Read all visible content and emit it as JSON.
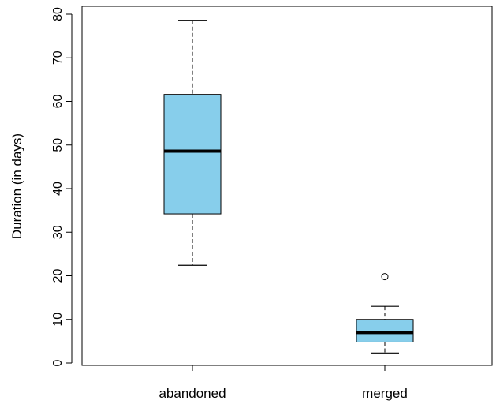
{
  "chart_data": {
    "type": "boxplot",
    "ylabel": "Duration (in days)",
    "xlabel": "",
    "title": "",
    "ylim": [
      0,
      80
    ],
    "yticks": [
      0,
      10,
      20,
      30,
      40,
      50,
      60,
      70,
      80
    ],
    "grid": false,
    "box_fill": "#87CEEB",
    "categories": [
      "abandoned",
      "merged"
    ],
    "boxes": [
      {
        "category": "abandoned",
        "whisker_low": 22.4,
        "q1": 34.2,
        "median": 48.6,
        "q3": 61.6,
        "whisker_high": 78.6,
        "outliers": []
      },
      {
        "category": "merged",
        "whisker_low": 2.3,
        "q1": 4.8,
        "median": 7.0,
        "q3": 10.0,
        "whisker_high": 13.0,
        "outliers": [
          19.8
        ]
      }
    ]
  }
}
